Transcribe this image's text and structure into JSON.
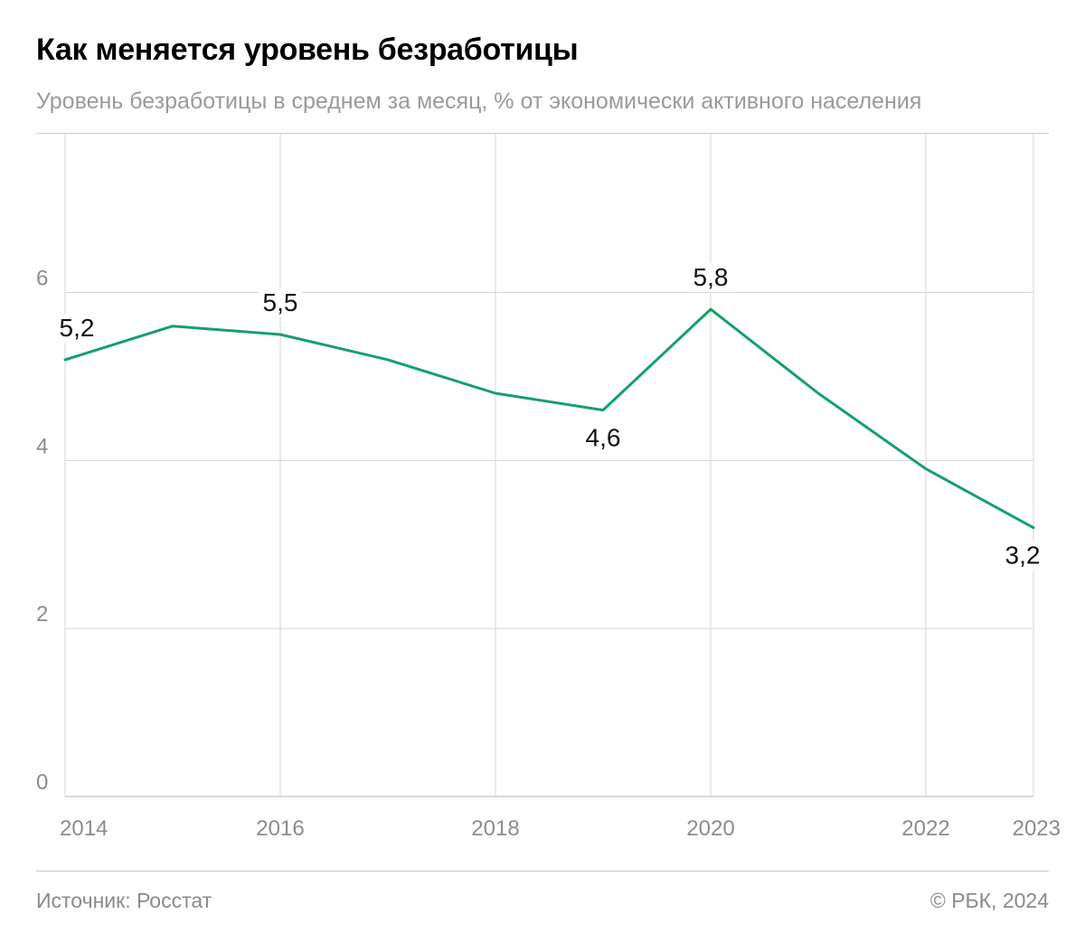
{
  "header": {
    "title": "Как меняется уровень безработицы",
    "subtitle": "Уровень безработицы в среднем за месяц, % от экономически активного населения"
  },
  "footer": {
    "source": "Источник: Росстат",
    "copyright": "© РБК, 2024"
  },
  "colors": {
    "line": "#16a06a",
    "grid": "#d6d6d6",
    "axis_text": "#8c8c8c",
    "label_text": "#111111"
  },
  "chart_data": {
    "type": "line",
    "title": "Как меняется уровень безработицы",
    "subtitle": "Уровень безработицы в среднем за месяц, % от экономически активного населения",
    "xlabel": "",
    "ylabel": "",
    "xlim": [
      2014,
      2023
    ],
    "ylim": [
      0,
      7.9
    ],
    "grid": true,
    "x_ticks": [
      "2014",
      "2016",
      "2018",
      "2020",
      "2022",
      "2023"
    ],
    "y_ticks": [
      "0",
      "2",
      "4",
      "6"
    ],
    "series": [
      {
        "x": [
          2014,
          2015,
          2016,
          2017,
          2018,
          2019,
          2020,
          2021,
          2022,
          2023
        ],
        "values": [
          5.2,
          5.6,
          5.5,
          5.2,
          4.8,
          4.6,
          5.8,
          4.8,
          3.9,
          3.2
        ]
      }
    ],
    "data_labels": [
      {
        "x": 2014,
        "value": 5.2,
        "text": "5,2",
        "position": "above"
      },
      {
        "x": 2016,
        "value": 5.5,
        "text": "5,5",
        "position": "above"
      },
      {
        "x": 2019,
        "value": 4.6,
        "text": "4,6",
        "position": "below"
      },
      {
        "x": 2020,
        "value": 5.8,
        "text": "5,8",
        "position": "above"
      },
      {
        "x": 2023,
        "value": 3.2,
        "text": "3,2",
        "position": "below"
      }
    ]
  }
}
